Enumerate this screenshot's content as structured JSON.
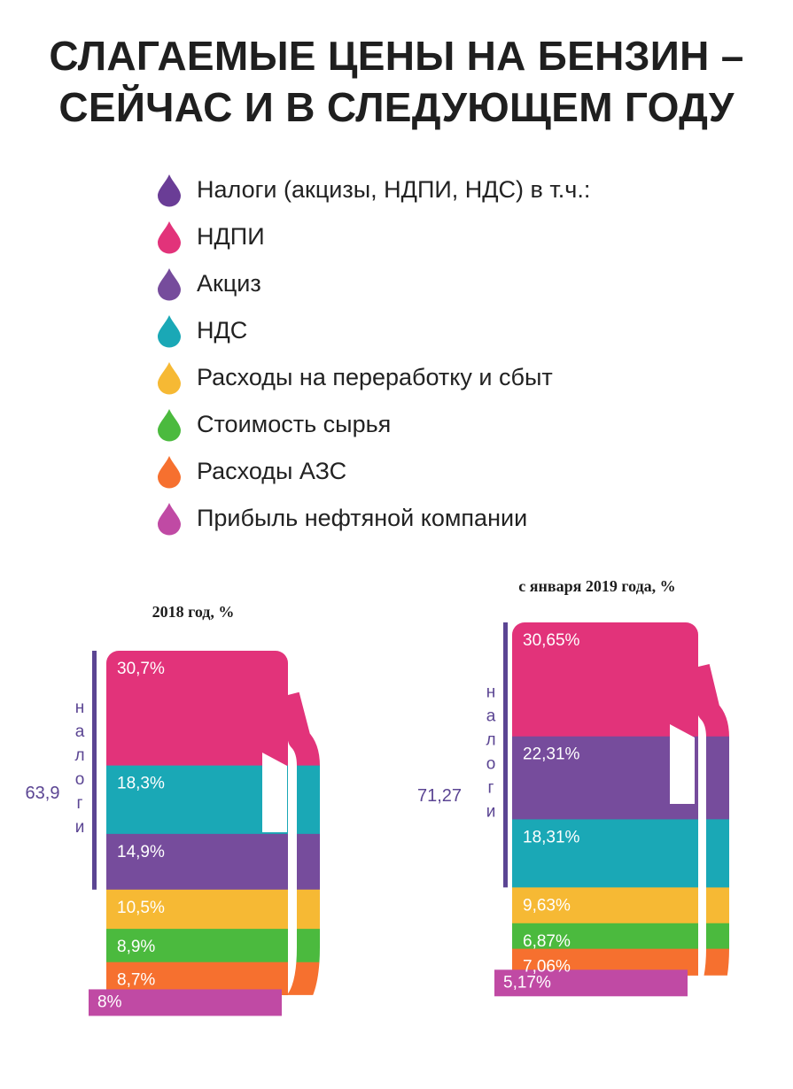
{
  "title": {
    "line1": "СЛАГАЕМЫЕ ЦЕНЫ НА БЕНЗИН –",
    "line2": "СЕЙЧАС И В СЛЕДУЮЩЕМ ГОДУ"
  },
  "legend": [
    {
      "key": "taxes",
      "label": "Налоги (акцизы, НДПИ, НДС) в т.ч.:",
      "color": "#6a3d96"
    },
    {
      "key": "ndpi",
      "label": "НДПИ",
      "color": "#e2337a"
    },
    {
      "key": "excise",
      "label": "Акциз",
      "color": "#764c9c"
    },
    {
      "key": "vat",
      "label": "НДС",
      "color": "#1aa8b6"
    },
    {
      "key": "processing",
      "label": "Расходы на переработку и сбыт",
      "color": "#f6b934"
    },
    {
      "key": "raw",
      "label": "Стоимость сырья",
      "color": "#4bba3e"
    },
    {
      "key": "station",
      "label": "Расходы АЗС",
      "color": "#f6702f"
    },
    {
      "key": "profit",
      "label": "Прибыль нефтяной компании",
      "color": "#c04aa4"
    }
  ],
  "chart_data": [
    {
      "type": "bar",
      "subtitle": "2018 год, %",
      "taxes_total": "63,9",
      "taxes_label": "налоги",
      "series": [
        {
          "key": "ndpi",
          "value": 30.7,
          "label": "30,7%"
        },
        {
          "key": "vat",
          "value": 18.3,
          "label": "18,3%"
        },
        {
          "key": "excise",
          "value": 14.9,
          "label": "14,9%"
        },
        {
          "key": "processing",
          "value": 10.5,
          "label": "10,5%"
        },
        {
          "key": "raw",
          "value": 8.9,
          "label": "8,9%"
        },
        {
          "key": "station",
          "value": 8.7,
          "label": "8,7%"
        },
        {
          "key": "profit",
          "value": 8,
          "label": "8%"
        }
      ]
    },
    {
      "type": "bar",
      "subtitle": "с января 2019 года, %",
      "taxes_total": "71,27",
      "taxes_label": "налоги",
      "series": [
        {
          "key": "ndpi",
          "value": 30.65,
          "label": "30,65%"
        },
        {
          "key": "excise",
          "value": 22.31,
          "label": "22,31%"
        },
        {
          "key": "vat",
          "value": 18.31,
          "label": "18,31%"
        },
        {
          "key": "processing",
          "value": 9.63,
          "label": "9,63%"
        },
        {
          "key": "raw",
          "value": 6.87,
          "label": "6,87%"
        },
        {
          "key": "station",
          "value": 7.06,
          "label": "7,06%"
        },
        {
          "key": "profit",
          "value": 5.17,
          "label": "5,17%"
        }
      ]
    }
  ]
}
